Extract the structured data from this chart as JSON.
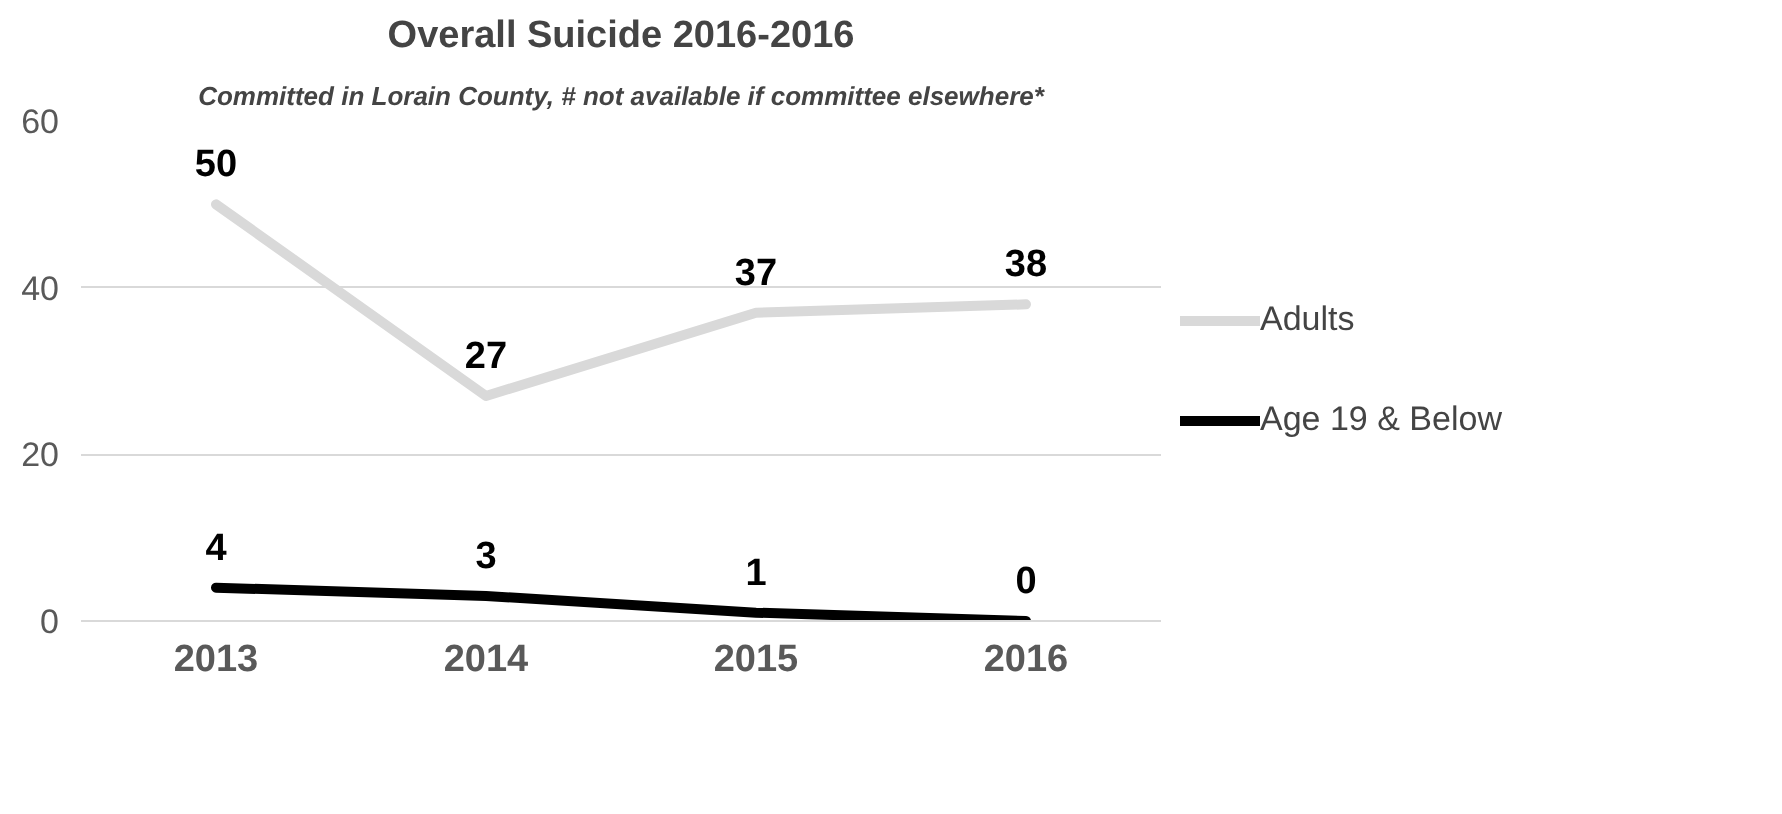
{
  "chart_data": {
    "type": "line",
    "title": "Overall Suicide 2016-2016",
    "subtitle": "Committed in Lorain County, # not available if committee elsewhere*",
    "categories": [
      "2013",
      "2014",
      "2015",
      "2016"
    ],
    "series": [
      {
        "name": "Adults",
        "color": "#d9d9d9",
        "values": [
          50,
          27,
          37,
          38
        ]
      },
      {
        "name": "Age 19 & Below",
        "color": "#000000",
        "values": [
          4,
          3,
          1,
          0
        ]
      }
    ],
    "ylim": [
      0,
      60
    ],
    "yticks": [
      0,
      20,
      40,
      60
    ],
    "grid": "y",
    "legend": "right",
    "data_labels": true,
    "marker": "none",
    "line_style": "solid"
  }
}
